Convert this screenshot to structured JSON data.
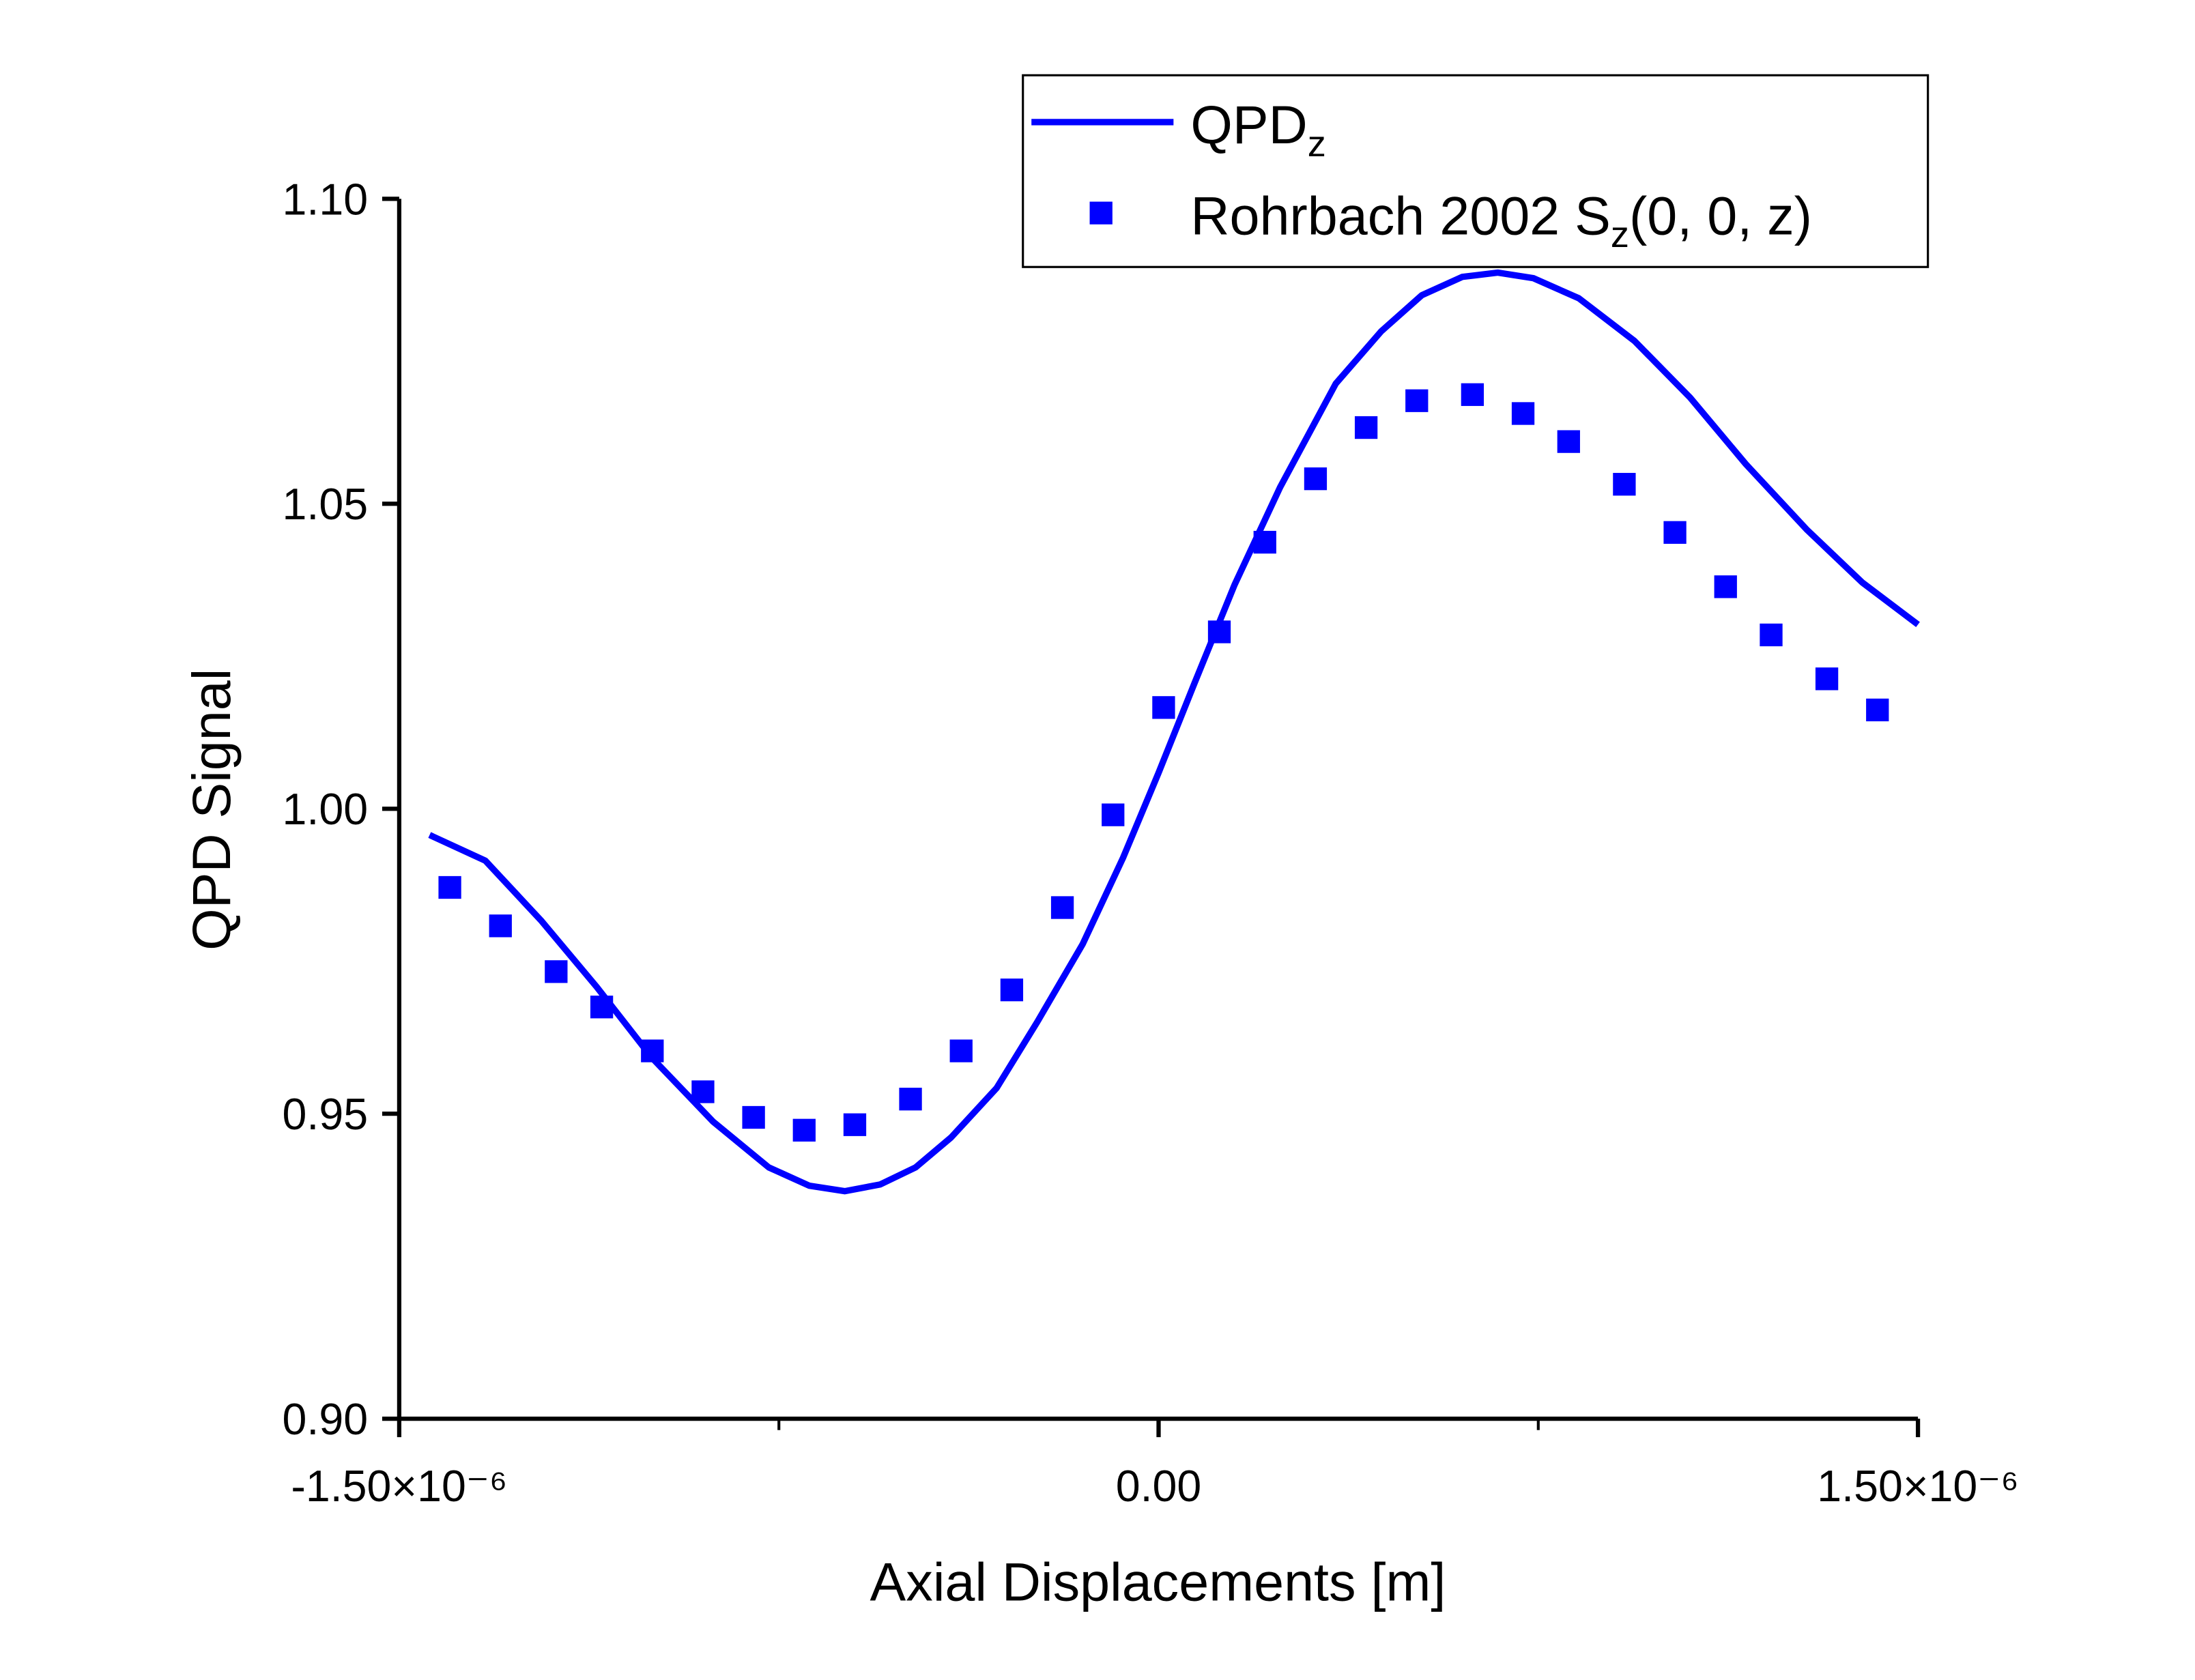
{
  "chart_data": {
    "type": "line",
    "x_label": "Axial Displacements [m]",
    "y_label": "QPD Signal",
    "xlim": [
      -1.5e-06,
      1.5e-06
    ],
    "ylim": [
      0.9,
      1.1
    ],
    "xticks": [
      {
        "value": -1.5e-06,
        "label": "-1.50×10⁻⁶"
      },
      {
        "value": 0,
        "label": "0.00"
      },
      {
        "value": 1.5e-06,
        "label": "1.50×10⁻⁶"
      }
    ],
    "xminor_ticks": [
      -7.5e-07,
      7.5e-07
    ],
    "yticks": [
      {
        "value": 0.9,
        "label": "0.90"
      },
      {
        "value": 0.95,
        "label": "0.95"
      },
      {
        "value": 1.0,
        "label": "1.00"
      },
      {
        "value": 1.05,
        "label": "1.05"
      },
      {
        "value": 1.1,
        "label": "1.10"
      }
    ],
    "legend": "top-right",
    "series": [
      {
        "name_parts": [
          {
            "text": "QPD"
          },
          {
            "text": "z",
            "sub": true
          }
        ],
        "mode": "line",
        "color": "#0000ff",
        "x": [
          -1.44e-06,
          -1.33e-06,
          -1.22e-06,
          -1.11e-06,
          -1e-06,
          -8.8e-07,
          -7.7e-07,
          -6.9e-07,
          -6.2e-07,
          -5.5e-07,
          -4.8e-07,
          -4.1e-07,
          -3.2e-07,
          -2.4e-07,
          -1.5e-07,
          -7e-08,
          0,
          7e-08,
          1.5e-07,
          2.4e-07,
          3.5e-07,
          4.4e-07,
          5.2e-07,
          6e-07,
          6.7e-07,
          7.4e-07,
          8.3e-07,
          9.4e-07,
          1.05e-06,
          1.16e-06,
          1.28e-06,
          1.39e-06,
          1.5e-06
        ],
        "values": [
          0.9957,
          0.9915,
          0.9817,
          0.9708,
          0.9591,
          0.9487,
          0.9412,
          0.9382,
          0.9373,
          0.9384,
          0.9412,
          0.9461,
          0.9542,
          0.965,
          0.9778,
          0.992,
          1.0059,
          1.0204,
          1.0367,
          1.0527,
          1.0697,
          1.0783,
          1.0842,
          1.0872,
          1.0879,
          1.087,
          1.0837,
          1.0767,
          1.0674,
          1.0565,
          1.0458,
          1.0371,
          1.0302
        ]
      },
      {
        "name_parts": [
          {
            "text": "Rohrbach 2002 S"
          },
          {
            "text": "z",
            "sub": true
          },
          {
            "text": "(0, 0, z)"
          }
        ],
        "mode": "marker",
        "color": "#0000ff",
        "x": [
          -1.4e-06,
          -1.3e-06,
          -1.19e-06,
          -1.1e-06,
          -1e-06,
          -9e-07,
          -8e-07,
          -7e-07,
          -6e-07,
          -4.9e-07,
          -3.9e-07,
          -2.9e-07,
          -1.9e-07,
          -9e-08,
          1e-08,
          1.2e-07,
          2.1e-07,
          3.1e-07,
          4.1e-07,
          5.1e-07,
          6.2e-07,
          7.2e-07,
          8.1e-07,
          9.2e-07,
          1.02e-06,
          1.12e-06,
          1.21e-06,
          1.32e-06,
          1.42e-06
        ],
        "values": [
          0.9871,
          0.9808,
          0.9733,
          0.9675,
          0.9603,
          0.9536,
          0.9494,
          0.9473,
          0.9482,
          0.9524,
          0.9603,
          0.9703,
          0.9838,
          0.999,
          1.0166,
          1.029,
          1.0437,
          1.0541,
          1.0625,
          1.0669,
          1.0679,
          1.0648,
          1.0602,
          1.0532,
          1.0453,
          1.0364,
          1.0285,
          1.0213,
          1.0162
        ]
      }
    ]
  }
}
